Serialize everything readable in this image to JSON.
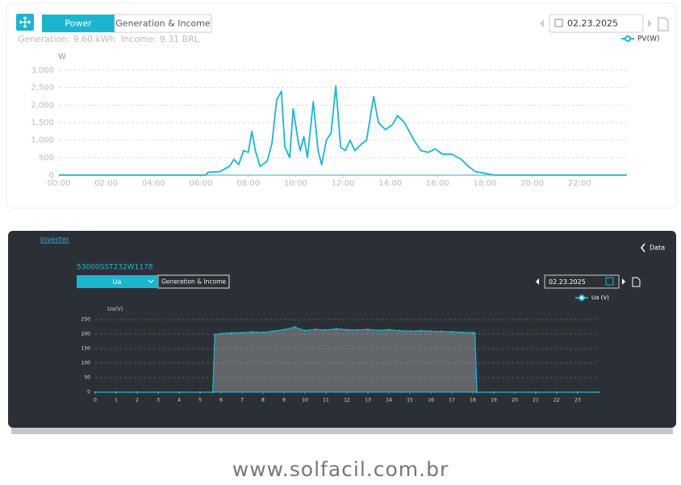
{
  "toolbar": {
    "tab_active": "Power",
    "tab_other": "Generation & Income",
    "generation": "Generation: 9.60 kWh",
    "income": "Income: 9.31 BRL",
    "date": "02.23.2025"
  },
  "inverter_panel": {
    "link": "Inverter",
    "back": "Data",
    "device": "53000SST232W1178",
    "select": "Ua",
    "tab_other": "Generation & Income",
    "date": "02.23.2025"
  },
  "footer": "www.solfacil.com.br",
  "chart_data": [
    {
      "type": "line",
      "y_label": "W",
      "x": [
        0,
        6.2,
        6.3,
        6.8,
        7.2,
        7.4,
        7.6,
        7.8,
        8.0,
        8.15,
        8.3,
        8.5,
        8.8,
        9.0,
        9.2,
        9.4,
        9.55,
        9.75,
        9.9,
        10.1,
        10.2,
        10.35,
        10.5,
        10.75,
        10.95,
        11.1,
        11.3,
        11.5,
        11.7,
        11.9,
        12.1,
        12.3,
        12.5,
        12.8,
        13.0,
        13.3,
        13.5,
        13.8,
        14.1,
        14.3,
        14.6,
        15.0,
        15.3,
        15.6,
        15.9,
        16.2,
        16.6,
        17.0,
        17.3,
        17.6,
        18.0,
        18.4,
        24
      ],
      "series": [
        {
          "name": "PV(W)",
          "color": "#1cb5cf",
          "values": [
            0,
            0,
            80,
            100,
            250,
            450,
            300,
            700,
            650,
            1250,
            700,
            250,
            400,
            900,
            2150,
            2400,
            800,
            500,
            1900,
            1000,
            700,
            1100,
            500,
            2100,
            700,
            300,
            1000,
            1200,
            2550,
            800,
            700,
            1000,
            700,
            900,
            1000,
            2250,
            1500,
            1300,
            1450,
            1700,
            1500,
            1000,
            700,
            650,
            750,
            600,
            600,
            450,
            250,
            100,
            50,
            0,
            0
          ]
        }
      ],
      "xlim": [
        0,
        24
      ],
      "xticks": [
        {
          "value": 0,
          "label": "00:00"
        },
        {
          "value": 2,
          "label": "02:00"
        },
        {
          "value": 4,
          "label": "04:00"
        },
        {
          "value": 6,
          "label": "06:00"
        },
        {
          "value": 8,
          "label": "08:00"
        },
        {
          "value": 10,
          "label": "10:00"
        },
        {
          "value": 12,
          "label": "12:00"
        },
        {
          "value": 14,
          "label": "14:00"
        },
        {
          "value": 16,
          "label": "16:00"
        },
        {
          "value": 18,
          "label": "18:00"
        },
        {
          "value": 20,
          "label": "20:00"
        },
        {
          "value": 22,
          "label": "22:00"
        }
      ],
      "ylim": [
        0,
        3000
      ],
      "yticks": [
        0,
        500,
        {
          "value": 1000,
          "label": "1,000"
        },
        {
          "value": 1500,
          "label": "1,500"
        },
        {
          "value": 2000,
          "label": "2,000"
        },
        {
          "value": 2500,
          "label": "2,500"
        },
        {
          "value": 3000,
          "label": "3,000"
        }
      ],
      "grid": true
    },
    {
      "type": "line",
      "y_label": "Ua(V)",
      "area": true,
      "x": [
        0,
        1,
        2,
        3,
        4,
        5,
        5.6,
        5.7,
        6,
        6.5,
        7,
        7.5,
        8,
        8.5,
        9,
        9.5,
        10,
        10.5,
        11,
        11.5,
        12,
        12.5,
        13,
        13.5,
        14,
        14.5,
        15,
        15.5,
        16,
        16.5,
        17,
        17.5,
        18,
        18.1,
        18.2,
        19,
        20,
        21,
        22,
        23,
        24
      ],
      "series": [
        {
          "name": "Ua  (V)",
          "color": "#1cb5cf",
          "values": [
            0,
            0,
            0,
            0,
            0,
            0,
            0,
            198,
            202,
            204,
            205,
            207,
            206,
            210,
            215,
            224,
            212,
            216,
            214,
            218,
            215,
            214,
            216,
            213,
            215,
            212,
            210,
            211,
            210,
            209,
            208,
            206,
            205,
            203,
            0,
            0,
            0,
            0,
            0,
            0,
            0
          ]
        }
      ],
      "xlim": [
        0,
        24
      ],
      "xticks": [
        0,
        1,
        2,
        3,
        4,
        5,
        6,
        7,
        8,
        9,
        10,
        11,
        12,
        13,
        14,
        15,
        16,
        17,
        18,
        19,
        20,
        21,
        22,
        23
      ],
      "ylim": [
        0,
        250
      ],
      "yticks": [
        0,
        50,
        100,
        150,
        200,
        250
      ],
      "grid": true
    }
  ]
}
